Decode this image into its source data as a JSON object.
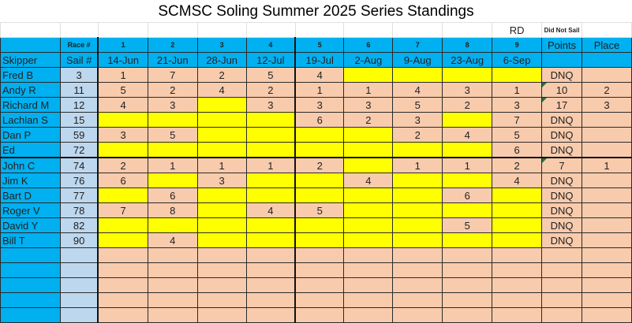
{
  "title": "SCMSC Soling Summer 2025 Series Standings",
  "legend": {
    "rd_label": "RD",
    "dns_label": "Did Not Sail"
  },
  "header": {
    "race_label": "Race #",
    "skipper_label": "Skipper",
    "sail_label": "Sail #",
    "points_label": "Points",
    "place_label": "Place",
    "races": [
      {
        "num": "1",
        "date": "14-Jun"
      },
      {
        "num": "2",
        "date": "21-Jun"
      },
      {
        "num": "3",
        "date": "28-Jun"
      },
      {
        "num": "4",
        "date": "12-Jul"
      },
      {
        "num": "5",
        "date": "19-Jul"
      },
      {
        "num": "6",
        "date": "2-Aug"
      },
      {
        "num": "7",
        "date": "9-Aug"
      },
      {
        "num": "8",
        "date": "23-Aug"
      },
      {
        "num": "9",
        "date": "6-Sep"
      }
    ]
  },
  "colors": {
    "header": "#00b0f0",
    "sail": "#bdd7ee",
    "sailed": "#f8cbad",
    "did_not_sail": "#ffff00",
    "rd": "#92d050"
  },
  "rows": [
    {
      "skipper": "Fred B",
      "sail": "3",
      "results": [
        "1",
        "7",
        "2",
        "5",
        "4",
        null,
        null,
        null,
        null
      ],
      "points": "DNQ",
      "place": "",
      "note": false
    },
    {
      "skipper": "Andy R",
      "sail": "11",
      "results": [
        "5",
        "2",
        "4",
        "2",
        "1",
        "1",
        "4",
        "3",
        "1"
      ],
      "points": "10",
      "place": "2",
      "note": true
    },
    {
      "skipper": "Richard M",
      "sail": "12",
      "results": [
        "4",
        "3",
        null,
        "3",
        "3",
        "3",
        "5",
        "2",
        "3"
      ],
      "points": "17",
      "place": "3",
      "note": true
    },
    {
      "skipper": "Lachlan S",
      "sail": "15",
      "results": [
        null,
        null,
        null,
        null,
        "6",
        "2",
        "3",
        null,
        "7"
      ],
      "points": "DNQ",
      "place": "",
      "note": false
    },
    {
      "skipper": "Dan P",
      "sail": "59",
      "results": [
        "3",
        "5",
        null,
        null,
        null,
        null,
        "2",
        "4",
        "5"
      ],
      "points": "DNQ",
      "place": "",
      "note": false
    },
    {
      "skipper": "Ed",
      "sail": "72",
      "results": [
        null,
        null,
        null,
        null,
        null,
        null,
        null,
        null,
        "6"
      ],
      "points": "DNQ",
      "place": "",
      "note": false
    },
    {
      "skipper": "John C",
      "sail": "74",
      "results": [
        "2",
        "1",
        "1",
        "1",
        "2",
        null,
        "1",
        "1",
        "2"
      ],
      "points": "7",
      "place": "1",
      "note": true
    },
    {
      "skipper": "Jim K",
      "sail": "76",
      "results": [
        "6",
        null,
        "3",
        null,
        null,
        "4",
        null,
        null,
        "4"
      ],
      "points": "DNQ",
      "place": "",
      "note": false
    },
    {
      "skipper": "Bart D",
      "sail": "77",
      "results": [
        null,
        "6",
        null,
        null,
        null,
        null,
        null,
        "6",
        null
      ],
      "points": "DNQ",
      "place": "",
      "note": false
    },
    {
      "skipper": "Roger V",
      "sail": "78",
      "results": [
        "7",
        "8",
        null,
        "4",
        "5",
        null,
        null,
        null,
        null
      ],
      "points": "DNQ",
      "place": "",
      "note": false
    },
    {
      "skipper": "David Y",
      "sail": "82",
      "results": [
        null,
        null,
        null,
        null,
        null,
        null,
        null,
        "5",
        null
      ],
      "points": "DNQ",
      "place": "",
      "note": false
    },
    {
      "skipper": "Bill T",
      "sail": "90",
      "results": [
        null,
        "4",
        null,
        null,
        null,
        null,
        null,
        null,
        null
      ],
      "points": "DNQ",
      "place": "",
      "note": false
    }
  ],
  "empty_rows": 5
}
